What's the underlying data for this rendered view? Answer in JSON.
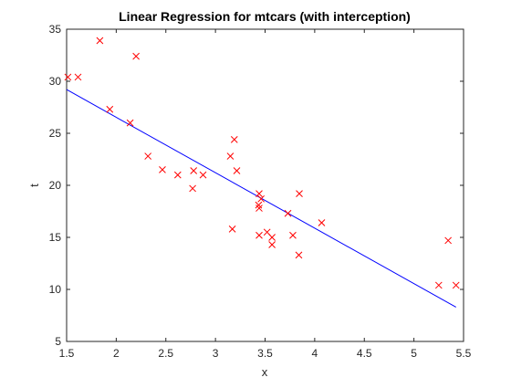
{
  "chart_data": {
    "type": "scatter",
    "title": "Linear Regression for mtcars (with interception)",
    "xlabel": "x",
    "ylabel": "t",
    "xlim": [
      1.5,
      5.5
    ],
    "ylim": [
      5,
      35
    ],
    "xticks": [
      "1.5",
      "2",
      "2.5",
      "3",
      "3.5",
      "4",
      "4.5",
      "5",
      "5.5"
    ],
    "yticks": [
      "5",
      "10",
      "15",
      "20",
      "25",
      "30",
      "35"
    ],
    "grid": false,
    "legend": "none",
    "series": [
      {
        "kind": "points",
        "marker": "x",
        "color": "#ff0000",
        "x": [
          1.513,
          1.615,
          1.835,
          1.935,
          2.14,
          2.2,
          2.32,
          2.465,
          2.62,
          2.77,
          2.78,
          2.875,
          3.15,
          3.17,
          3.19,
          3.215,
          3.435,
          3.44,
          3.44,
          3.44,
          3.46,
          3.52,
          3.57,
          3.57,
          3.73,
          3.78,
          3.84,
          3.845,
          4.07,
          5.25,
          5.345,
          5.424
        ],
        "y": [
          30.4,
          30.4,
          33.9,
          27.3,
          26.0,
          32.4,
          22.8,
          21.5,
          21.0,
          19.7,
          21.4,
          21.0,
          22.8,
          15.8,
          24.4,
          21.4,
          18.1,
          17.8,
          19.2,
          15.2,
          18.7,
          15.5,
          15.0,
          14.3,
          17.3,
          15.2,
          13.3,
          19.2,
          16.4,
          10.4,
          14.7,
          10.4
        ]
      },
      {
        "kind": "line",
        "color": "#0000ff",
        "x": [
          1.5,
          5.424
        ],
        "y": [
          29.2,
          8.3
        ]
      }
    ]
  }
}
